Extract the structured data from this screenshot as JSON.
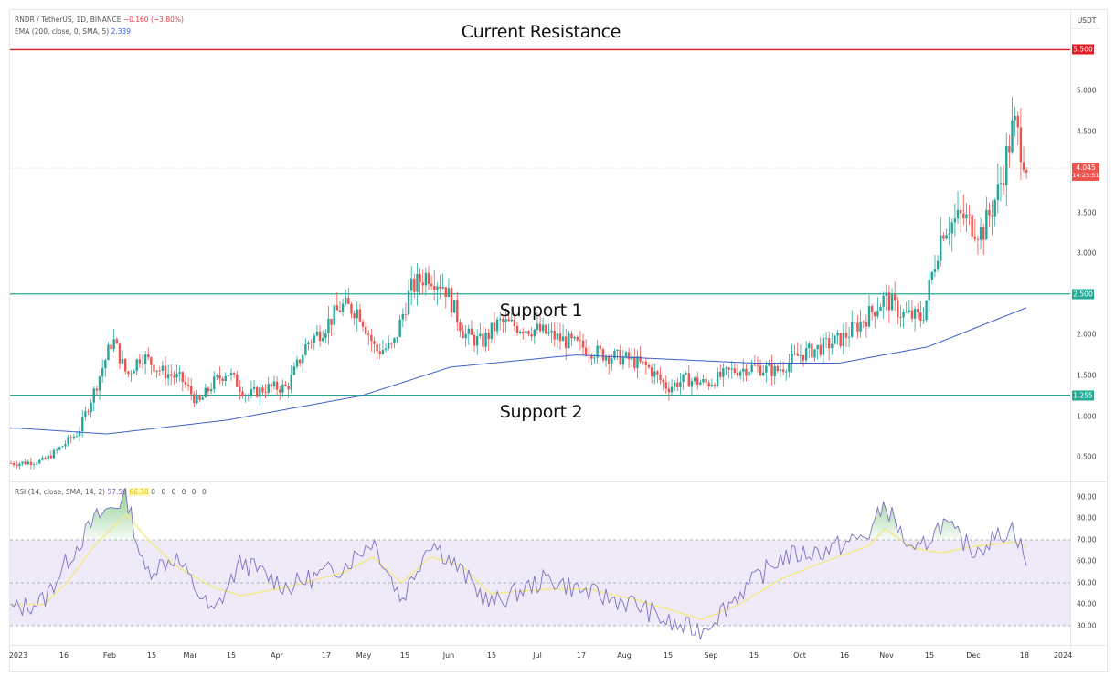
{
  "header": {
    "symbol": "RNDR / TetherUS, 1D, BINANCE",
    "change": "−0.160 (−3.80%)",
    "ema_label": "EMA (200, close, 0, SMA, 5)",
    "ema_value": "2.339",
    "rsi_label": "RSI (14, close, SMA, 14, 2)",
    "rsi_value": "57.50",
    "rsi_ma_value": "66.38",
    "rsi_extra": "0 0 0 0 0 0"
  },
  "price_axis": {
    "currency": "USDT",
    "ticks": [
      "5.000",
      "4.500",
      "3.500",
      "3.000",
      "2.000",
      "1.500",
      "1.000",
      "0.500"
    ],
    "resistance_tag": "5.500",
    "support1_tag": "2.500",
    "support2_tag": "1.255",
    "last_price": "4.045",
    "countdown": "14:23:51"
  },
  "rsi_axis": {
    "ticks": [
      "90.00",
      "80.00",
      "70.00",
      "60.00",
      "50.00",
      "40.00",
      "30.00"
    ]
  },
  "time_axis": {
    "labels": [
      "2023",
      "16",
      "Feb",
      "15",
      "Mar",
      "15",
      "Apr",
      "17",
      "May",
      "15",
      "Jun",
      "15",
      "Jul",
      "17",
      "Aug",
      "15",
      "Sep",
      "15",
      "Oct",
      "16",
      "Nov",
      "15",
      "Dec",
      "18",
      "2024"
    ]
  },
  "annotations": {
    "resistance": "Current Resistance",
    "support1": "Support 1",
    "support2": "Support 2"
  },
  "colors": {
    "up": "#26a69a",
    "down": "#ef5350",
    "resistance": "#e31b23",
    "support": "#22ab94",
    "ema": "#3f5fc9",
    "rsi": "#7e6fc4",
    "rsi_ma": "#f3e98a",
    "rsi_band": "#efeaf8"
  },
  "chart_data": [
    {
      "type": "candlestick",
      "title": "RNDR / TetherUS, 1D, BINANCE",
      "ylabel": "USDT",
      "ylim": [
        0.3,
        5.6
      ],
      "x": [
        "2023-01-01",
        "2023-01-10",
        "2023-01-16",
        "2023-01-22",
        "2023-01-28",
        "2023-02-03",
        "2023-02-08",
        "2023-02-13",
        "2023-02-20",
        "2023-02-27",
        "2023-03-05",
        "2023-03-10",
        "2023-03-15",
        "2023-03-22",
        "2023-03-29",
        "2023-04-05",
        "2023-04-12",
        "2023-04-17",
        "2023-04-24",
        "2023-04-30",
        "2023-05-06",
        "2023-05-12",
        "2023-05-18",
        "2023-05-24",
        "2023-05-30",
        "2023-06-06",
        "2023-06-12",
        "2023-06-18",
        "2023-06-25",
        "2023-07-02",
        "2023-07-09",
        "2023-07-17",
        "2023-07-25",
        "2023-08-02",
        "2023-08-09",
        "2023-08-16",
        "2023-08-22",
        "2023-08-30",
        "2023-09-07",
        "2023-09-15",
        "2023-09-23",
        "2023-10-01",
        "2023-10-09",
        "2023-10-16",
        "2023-10-24",
        "2023-10-31",
        "2023-11-06",
        "2023-11-13",
        "2023-11-20",
        "2023-11-27",
        "2023-12-04",
        "2023-12-10",
        "2023-12-15",
        "2023-12-20"
      ],
      "close_path": [
        0.42,
        0.45,
        0.62,
        0.8,
        1.35,
        1.95,
        1.5,
        1.75,
        1.55,
        1.45,
        1.15,
        1.4,
        1.55,
        1.25,
        1.35,
        1.35,
        1.9,
        2.05,
        2.35,
        2.3,
        1.8,
        1.85,
        2.55,
        2.75,
        2.6,
        2.0,
        1.9,
        2.15,
        2.1,
        2.05,
        1.95,
        1.85,
        1.75,
        1.7,
        1.6,
        1.35,
        1.45,
        1.4,
        1.55,
        1.6,
        1.55,
        1.75,
        1.85,
        1.95,
        2.2,
        2.45,
        2.25,
        2.2,
        3.3,
        3.45,
        3.25,
        3.8,
        4.6,
        4.045
      ],
      "support_levels": [
        2.5,
        1.255
      ],
      "resistance_levels": [
        5.5
      ],
      "ema200": {
        "x": [
          "2023-01-01",
          "2023-02-01",
          "2023-03-15",
          "2023-05-01",
          "2023-06-01",
          "2023-07-15",
          "2023-09-15",
          "2023-10-15",
          "2023-11-15",
          "2023-12-20"
        ],
        "values": [
          0.85,
          0.78,
          0.95,
          1.25,
          1.6,
          1.75,
          1.65,
          1.65,
          1.85,
          2.339
        ]
      },
      "last_price": 4.045,
      "change": -0.16,
      "change_pct": -3.8
    },
    {
      "type": "line",
      "title": "RSI (14, close, SMA, 14, 2)",
      "ylim": [
        25,
        95
      ],
      "bands": [
        30,
        50,
        70
      ],
      "x": [
        "2023-01-01",
        "2023-01-10",
        "2023-01-18",
        "2023-01-28",
        "2023-02-08",
        "2023-02-14",
        "2023-02-25",
        "2023-03-10",
        "2023-03-20",
        "2023-04-05",
        "2023-04-25",
        "2023-05-05",
        "2023-05-15",
        "2023-05-25",
        "2023-06-05",
        "2023-06-15",
        "2023-07-05",
        "2023-07-20",
        "2023-08-05",
        "2023-08-18",
        "2023-08-28",
        "2023-09-10",
        "2023-09-25",
        "2023-10-10",
        "2023-10-25",
        "2023-10-31",
        "2023-11-10",
        "2023-11-20",
        "2023-12-01",
        "2023-12-15",
        "2023-12-20"
      ],
      "series": [
        {
          "name": "RSI",
          "values": [
            38,
            42,
            60,
            80,
            90,
            55,
            62,
            35,
            60,
            48,
            58,
            70,
            42,
            70,
            55,
            40,
            52,
            45,
            40,
            30,
            28,
            45,
            62,
            65,
            72,
            87,
            62,
            78,
            65,
            76,
            57.5
          ]
        },
        {
          "name": "RSI-based MA",
          "values": [
            40,
            40,
            50,
            68,
            82,
            72,
            58,
            48,
            44,
            48,
            55,
            62,
            50,
            62,
            58,
            45,
            47,
            47,
            42,
            37,
            33,
            40,
            52,
            60,
            67,
            75,
            66,
            64,
            67,
            69,
            66.38
          ]
        }
      ]
    }
  ]
}
